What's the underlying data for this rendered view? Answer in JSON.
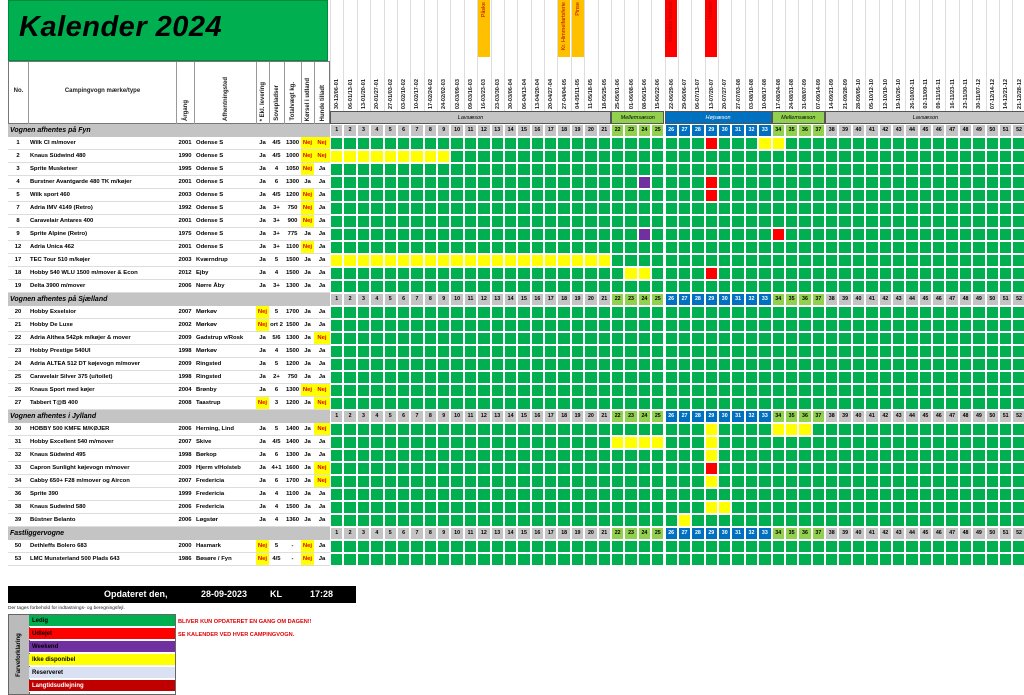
{
  "title": "Kalender 2024",
  "colors": {
    "ledig": "#00b050",
    "udlejet": "#ff0000",
    "weekend": "#7030a0",
    "ikke": "#ffff00",
    "reserveret": "#d9e1f2",
    "langtid": "#c00000",
    "hoj": "#0070c0",
    "mellem": "#92d050",
    "lav": "#c4c4c4"
  },
  "headers": {
    "no": "No.",
    "model": "Campingvogn mærke/type",
    "year": "Årgang",
    "place": "Afhentningsted",
    "excl": "* Ekl. levering",
    "beds": "Sovepladser",
    "weight": "Totalvægt kg.",
    "abroad": "Kørsel i udland",
    "dogs": "Hunde tilladt"
  },
  "week_dates": [
    "30-12/06-01",
    "06-01/13-01",
    "13-01/20-01",
    "20-01/27-01",
    "27-01/03-02",
    "03-02/10-02",
    "10-02/17-02",
    "17-02/24-02",
    "24-02/02-03",
    "02-03/09-03",
    "09-03/16-03",
    "16-03/23-03",
    "23-03/30-03",
    "30-03/06-04",
    "06-04/13-04",
    "13-04/20-04",
    "20-04/27-04",
    "27-04/04-05",
    "04-05/11-05",
    "11-05/18-05",
    "18-05/25-05",
    "25-05/01-06",
    "01-06/08-06",
    "08-06/15-06",
    "15-06/22-06",
    "22-06/29-06",
    "29-06/06-07",
    "06-07/13-07",
    "13-07/20-07",
    "20-07/27-07",
    "27-07/03-08",
    "03-08/10-08",
    "10-08/17-08",
    "17-08/24-08",
    "24-08/31-08",
    "31-08/07-09",
    "07-09/14-09",
    "14-09/21-09",
    "21-09/28-09",
    "28-09/05-10",
    "05-10/12-10",
    "12-10/19-10",
    "19-10/26-10",
    "26-10/02-11",
    "02-11/09-11",
    "09-11/16-11",
    "16-11/23-11",
    "23-11/30-11",
    "30-11/07-12",
    "07-12/14-12",
    "14-12/21-12",
    "21-12/28-12"
  ],
  "events": [
    {
      "week": 12,
      "label": "Påske",
      "color": "#ffc000"
    },
    {
      "week": 18,
      "label": "Kr. Himmelfartsferie",
      "color": "#ffc000"
    },
    {
      "week": 19,
      "label": "Pinse",
      "color": "#ffc000"
    },
    {
      "week": 26,
      "label": "Roskilde festival",
      "color": "#ff0000"
    },
    {
      "week": 29,
      "label": "Hosten",
      "color": "#ff0000"
    }
  ],
  "seasons": [
    {
      "label": "Lavsæson",
      "from": 1,
      "to": 21,
      "type": "lav"
    },
    {
      "label": "Mellemsæson",
      "from": 22,
      "to": 25,
      "type": "mellem"
    },
    {
      "label": "Højsæson",
      "from": 26,
      "to": 33,
      "type": "hoj"
    },
    {
      "label": "Mellemsæson",
      "from": 34,
      "to": 37,
      "type": "mellem"
    },
    {
      "label": "Lavsæson",
      "from": 38,
      "to": 52,
      "type": "lav"
    }
  ],
  "sections": [
    {
      "title": "Vognen afhentes på Fyn",
      "rows": [
        {
          "no": "1",
          "model": "Wilk CI m/mover",
          "year": "2001",
          "place": "Odense S",
          "excl": "Ja",
          "beds": "4/5",
          "weight": "1300",
          "abroad": "Nej",
          "dogs": "Nej",
          "s": {
            "29": "u",
            "33": "i",
            "34": "i"
          }
        },
        {
          "no": "2",
          "model": "Knaus Südwind 480",
          "year": "1990",
          "place": "Odense S",
          "excl": "Ja",
          "beds": "4/5",
          "weight": "1000",
          "abroad": "Nej",
          "dogs": "Nej",
          "s": {
            "1": "i",
            "2": "i",
            "3": "i",
            "4": "i",
            "5": "i",
            "6": "i",
            "7": "i",
            "8": "i",
            "9": "i"
          }
        },
        {
          "no": "3",
          "model": "Sprite Musketeer",
          "year": "1995",
          "place": "Odense S",
          "excl": "Ja",
          "beds": "4",
          "weight": "1050",
          "abroad": "Nej",
          "dogs": "Ja",
          "s": {}
        },
        {
          "no": "4",
          "model": "Burstner Avantgarde 480 TK m/køjer",
          "year": "2001",
          "place": "Odense S",
          "excl": "Ja",
          "beds": "6",
          "weight": "1300",
          "abroad": "Ja",
          "dogs": "Ja",
          "s": {
            "24": "w",
            "29": "u"
          }
        },
        {
          "no": "5",
          "model": "Wilk sport 460",
          "year": "2003",
          "place": "Odense S",
          "excl": "Ja",
          "beds": "4/5",
          "weight": "1200",
          "abroad": "Nej",
          "dogs": "Ja",
          "s": {
            "29": "u"
          }
        },
        {
          "no": "7",
          "model": "Adria IMV 4149 (Retro)",
          "year": "1992",
          "place": "Odense S",
          "excl": "Ja",
          "beds": "3+",
          "weight": "750",
          "abroad": "Nej",
          "dogs": "Ja",
          "s": {}
        },
        {
          "no": "8",
          "model": "Caravelair Antares 400",
          "year": "2001",
          "place": "Odense S",
          "excl": "Ja",
          "beds": "3+",
          "weight": "900",
          "abroad": "Nej",
          "dogs": "Ja",
          "s": {}
        },
        {
          "no": "9",
          "model": "Sprite Alpine (Retro)",
          "year": "1975",
          "place": "Odense S",
          "excl": "Ja",
          "beds": "3+",
          "weight": "775",
          "abroad": "Ja",
          "dogs": "Ja",
          "s": {
            "24": "w",
            "34": "u"
          }
        },
        {
          "no": "12",
          "model": "Adria Unica 462",
          "year": "2001",
          "place": "Odense S",
          "excl": "Ja",
          "beds": "3+",
          "weight": "1100",
          "abroad": "Nej",
          "dogs": "Ja",
          "s": {}
        },
        {
          "no": "17",
          "model": "TEC Tour 510 m/køjer",
          "year": "2003",
          "place": "Kværndrup",
          "excl": "Ja",
          "beds": "5",
          "weight": "1500",
          "abroad": "Ja",
          "dogs": "Ja",
          "s": {
            "1": "i",
            "2": "i",
            "3": "i",
            "4": "i",
            "5": "i",
            "6": "i",
            "7": "i",
            "8": "i",
            "9": "i",
            "10": "i",
            "11": "i",
            "12": "i",
            "13": "i",
            "14": "i",
            "15": "i",
            "16": "i",
            "17": "i",
            "18": "i",
            "19": "i",
            "20": "i",
            "21": "i"
          }
        },
        {
          "no": "18",
          "model": "Hobby 540 WLU 1500 m/mover & Econ",
          "year": "2012",
          "place": "Ejby",
          "excl": "Ja",
          "beds": "4",
          "weight": "1500",
          "abroad": "Ja",
          "dogs": "Ja",
          "s": {
            "23": "i",
            "24": "i",
            "29": "u"
          }
        },
        {
          "no": "19",
          "model": "Delta 3900 m/mover",
          "year": "2006",
          "place": "Nørre Åby",
          "excl": "Ja",
          "beds": "3+",
          "weight": "1300",
          "abroad": "Ja",
          "dogs": "Ja",
          "s": {}
        }
      ]
    },
    {
      "title": "Vognen afhentes på Sjælland",
      "rows": [
        {
          "no": "20",
          "model": "Hobby Exselsior",
          "year": "2007",
          "place": "Mørkøv",
          "excl": "Nej",
          "beds": "5",
          "weight": "1700",
          "abroad": "Ja",
          "dogs": "Ja",
          "s": {}
        },
        {
          "no": "21",
          "model": "Hobby De Luxe",
          "year": "2002",
          "place": "Mørkøv",
          "excl": "Nej",
          "beds": "ort 2",
          "weight": "1500",
          "abroad": "Ja",
          "dogs": "Ja",
          "s": {}
        },
        {
          "no": "22",
          "model": "Adria Althea 542pk m/køjer & mover",
          "year": "2009",
          "place": "Gadstrup v/Rosk",
          "excl": "Ja",
          "beds": "5/6",
          "weight": "1300",
          "abroad": "Ja",
          "dogs": "Nej",
          "s": {}
        },
        {
          "no": "23",
          "model": "Hobby Prestige 540UI",
          "year": "1998",
          "place": "Mørkøv",
          "excl": "Ja",
          "beds": "4",
          "weight": "1500",
          "abroad": "Ja",
          "dogs": "Ja",
          "s": {}
        },
        {
          "no": "24",
          "model": "Adria ALTEA 512 DT køjevogn m/mover",
          "year": "2009",
          "place": "Ringsted",
          "excl": "Ja",
          "beds": "5",
          "weight": "1200",
          "abroad": "Ja",
          "dogs": "Ja",
          "s": {}
        },
        {
          "no": "25",
          "model": "Caravelair Silver 375 (u/toilet)",
          "year": "1998",
          "place": "Ringsted",
          "excl": "Ja",
          "beds": "2+",
          "weight": "750",
          "abroad": "Ja",
          "dogs": "Ja",
          "s": {}
        },
        {
          "no": "26",
          "model": "Knaus Sport med køjer",
          "year": "2004",
          "place": "Brønby",
          "excl": "Ja",
          "beds": "6",
          "weight": "1300",
          "abroad": "Nej",
          "dogs": "Nej",
          "s": {}
        },
        {
          "no": "27",
          "model": "Tabbert T@B 400",
          "year": "2008",
          "place": "Taastrup",
          "excl": "Nej",
          "beds": "3",
          "weight": "1200",
          "abroad": "Ja",
          "dogs": "Nej",
          "s": {}
        }
      ]
    },
    {
      "title": "Vognen afhentes i Jylland",
      "rows": [
        {
          "no": "30",
          "model": "HOBBY 500 KMFE M/KØJER",
          "year": "2006",
          "place": "Herning, Lind",
          "excl": "Ja",
          "beds": "5",
          "weight": "1400",
          "abroad": "Ja",
          "dogs": "Nej",
          "s": {
            "29": "i",
            "34": "i",
            "35": "i",
            "36": "i"
          }
        },
        {
          "no": "31",
          "model": "Hobby Excellent 540 m/mover",
          "year": "2007",
          "place": "Skive",
          "excl": "Ja",
          "beds": "4/5",
          "weight": "1400",
          "abroad": "Ja",
          "dogs": "Ja",
          "s": {
            "22": "i",
            "23": "i",
            "24": "i",
            "25": "i",
            "29": "i"
          }
        },
        {
          "no": "32",
          "model": "Knaus Südwind 495",
          "year": "1998",
          "place": "Børkop",
          "excl": "Ja",
          "beds": "6",
          "weight": "1300",
          "abroad": "Ja",
          "dogs": "Ja",
          "s": {
            "29": "i"
          }
        },
        {
          "no": "33",
          "model": "Capron Sunlight køjevogn m/mover",
          "year": "2009",
          "place": "Hjerm v/Holsteb",
          "excl": "Ja",
          "beds": "4+1",
          "weight": "1600",
          "abroad": "Ja",
          "dogs": "Nej",
          "s": {
            "29": "u"
          }
        },
        {
          "no": "34",
          "model": "Cabby 650+ F28 m/mover og Aircon",
          "year": "2007",
          "place": "Fredericia",
          "excl": "Ja",
          "beds": "6",
          "weight": "1700",
          "abroad": "Ja",
          "dogs": "Nej",
          "s": {
            "29": "i"
          }
        },
        {
          "no": "36",
          "model": "Sprite 390",
          "year": "1999",
          "place": "Fredericia",
          "excl": "Ja",
          "beds": "4",
          "weight": "1100",
          "abroad": "Ja",
          "dogs": "Ja",
          "s": {}
        },
        {
          "no": "38",
          "model": "Knaus Sudwind 580",
          "year": "2006",
          "place": "Fredericia",
          "excl": "Ja",
          "beds": "4",
          "weight": "1500",
          "abroad": "Ja",
          "dogs": "Ja",
          "s": {
            "29": "i",
            "30": "i"
          }
        },
        {
          "no": "39",
          "model": "Bûstner Belanto",
          "year": "2006",
          "place": "Løgstør",
          "excl": "Ja",
          "beds": "4",
          "weight": "1360",
          "abroad": "Ja",
          "dogs": "Ja",
          "s": {
            "27": "i"
          }
        }
      ]
    },
    {
      "title": "Fastliggervogne",
      "rows": [
        {
          "no": "50",
          "model": "Dethleffs Bolero 683",
          "year": "2000",
          "place": "Hasmark",
          "excl": "Nej",
          "beds": "5",
          "weight": "-",
          "abroad": "Nej",
          "dogs": "Ja",
          "s": {}
        },
        {
          "no": "53",
          "model": "LMC Munsterland 500 Plads 643",
          "year": "1986",
          "place": "Bøsøre / Fyn",
          "excl": "Nej",
          "beds": "4/5",
          "weight": "-",
          "abroad": "Nej",
          "dogs": "Ja",
          "s": {}
        }
      ]
    }
  ],
  "updated": {
    "label": "Opdateret den,",
    "date": "28-09-2023",
    "kl": "KL",
    "time": "17:28"
  },
  "disclaimer": "Der tages forbehold for indtastnings- og beregningsfejl.",
  "legend_title": "Farveforklaring",
  "legend": [
    {
      "label": "Ledig",
      "color": "#00b050",
      "text_color": "#000"
    },
    {
      "label": "Udlejet",
      "color": "#ff0000",
      "text_color": "#000"
    },
    {
      "label": "Weekend",
      "color": "#7030a0",
      "text_color": "#000"
    },
    {
      "label": "Ikke disponibel",
      "color": "#ffff00",
      "text_color": "#000"
    },
    {
      "label": "Reserveret",
      "color": "#d9e1f2",
      "text_color": "#000"
    },
    {
      "label": "Langtidsudlejning",
      "color": "#c00000",
      "text_color": "#fff"
    }
  ],
  "notes": [
    "BLIVER KUN OPDATERET EN GANG OM DAGEN!!",
    "SE KALENDER VED HVER CAMPINGVOGN."
  ]
}
